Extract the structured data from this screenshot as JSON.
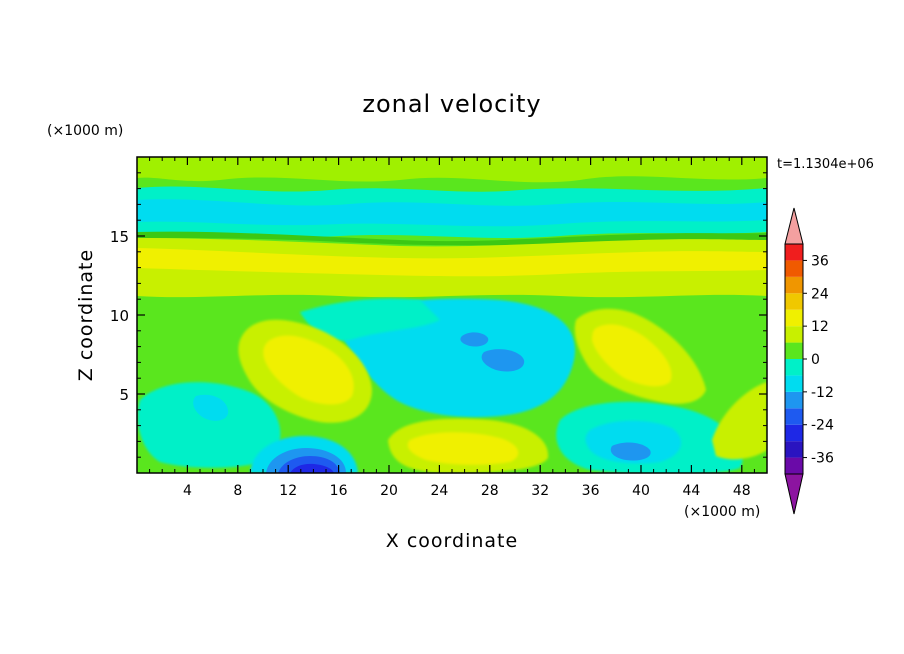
{
  "chart_data": {
    "type": "heatmap",
    "title": "zonal velocity",
    "xlabel": "X coordinate",
    "ylabel": "Z coordinate",
    "x_units": "(×1000 m)",
    "y_units": "(×1000 m)",
    "time_label": "t=1.1304e+06",
    "xlim": [
      0,
      50
    ],
    "ylim": [
      0,
      20
    ],
    "x_ticks": [
      4,
      8,
      12,
      16,
      20,
      24,
      28,
      32,
      36,
      40,
      44,
      48
    ],
    "y_ticks": [
      5,
      10,
      15
    ],
    "grid": false,
    "colorbar": {
      "levels": [
        -42,
        -36,
        -30,
        -24,
        -18,
        -12,
        -6,
        0,
        6,
        12,
        18,
        24,
        30,
        36,
        42
      ],
      "tick_labels": [
        "36",
        "24",
        "12",
        "0",
        "-12",
        "-24",
        "-36"
      ],
      "tick_values": [
        36,
        24,
        12,
        0,
        -12,
        -24,
        -36
      ],
      "colors": [
        "#6a0aa8",
        "#2a14c0",
        "#1e28e6",
        "#1e5af0",
        "#1e96f0",
        "#00dcf0",
        "#00f0c8",
        "#5ae61e",
        "#c8f000",
        "#f0f000",
        "#f0c800",
        "#f09600",
        "#f05a00",
        "#f01e1e"
      ],
      "extend_low_color": "#8c14a0",
      "extend_high_color": "#f4a0a0"
    },
    "features": [
      {
        "x": 13,
        "z": 0.6,
        "value": -26
      },
      {
        "x": 29,
        "z": 7.0,
        "value": -14
      },
      {
        "x": 39,
        "z": 1.3,
        "value": -14
      },
      {
        "x": 13,
        "z": 7.3,
        "value": 11
      },
      {
        "x": 39,
        "z": 7.8,
        "value": 11
      },
      {
        "x": 24,
        "z": 2.3,
        "value": 9
      },
      {
        "x": 25,
        "z": 13.8,
        "value": 10
      },
      {
        "x": 25,
        "z": 17.3,
        "value": -10
      }
    ]
  }
}
